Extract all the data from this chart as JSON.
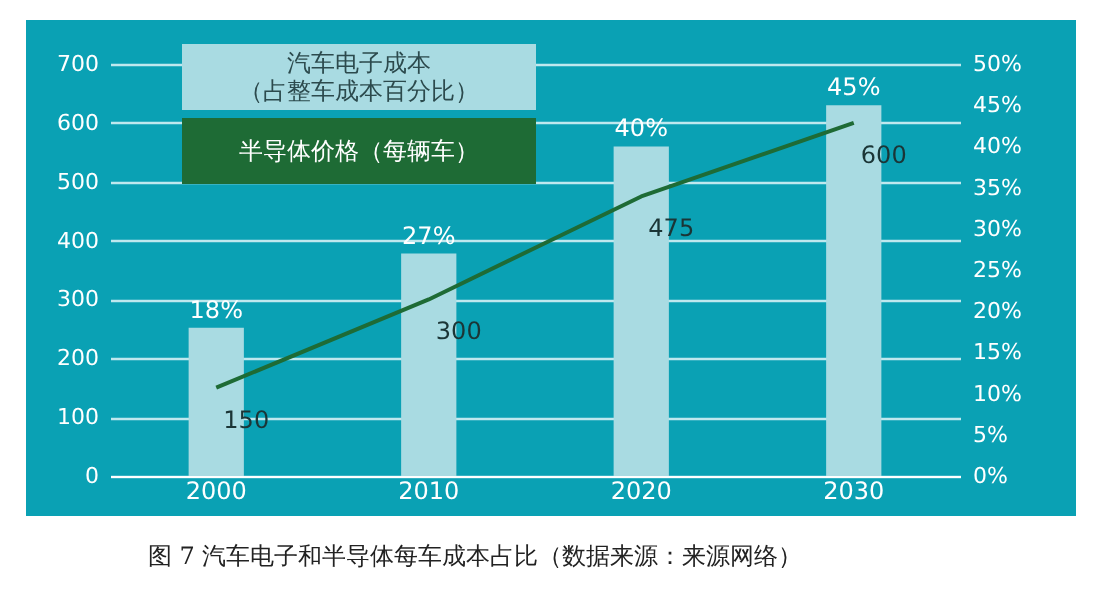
{
  "chart_data": {
    "type": "bar",
    "categories": [
      "2000",
      "2010",
      "2020",
      "2030"
    ],
    "series": [
      {
        "name": "汽车电子成本（占整车成本百分比）",
        "axis": "y2",
        "color": "#a9dbe2",
        "values": [
          18,
          27,
          40,
          45
        ],
        "value_labels": [
          "18%",
          "27%",
          "40%",
          "45%"
        ]
      },
      {
        "name": "半导体价格（每辆车）",
        "type": "line",
        "color": "#1e6b35",
        "values": [
          150,
          300,
          475,
          600
        ],
        "value_labels": [
          "150",
          "300",
          "475",
          "600"
        ]
      }
    ],
    "ylim": [
      0,
      700
    ],
    "yticks": [
      0,
      100,
      200,
      300,
      400,
      500,
      600,
      700
    ],
    "y2lim": [
      0,
      50
    ],
    "y2ticks": [
      {
        "value": 0,
        "label": "0%"
      },
      {
        "value": 5,
        "label": "5%"
      },
      {
        "value": 10,
        "label": "10%"
      },
      {
        "value": 15,
        "label": "15%"
      },
      {
        "value": 20,
        "label": "20%"
      },
      {
        "value": 25,
        "label": "25%"
      },
      {
        "value": 30,
        "label": "30%"
      },
      {
        "value": 35,
        "label": "35%"
      },
      {
        "value": 40,
        "label": "40%"
      },
      {
        "value": 45,
        "label": "45%"
      },
      {
        "value": 50,
        "label": "50%"
      }
    ],
    "grid": "y",
    "legend": "top left",
    "marker": "none",
    "line_style": "solid",
    "annotations": [
      "图 7 汽车电子和半导体每车成本占比（数据来源：来源网络）"
    ]
  }
}
